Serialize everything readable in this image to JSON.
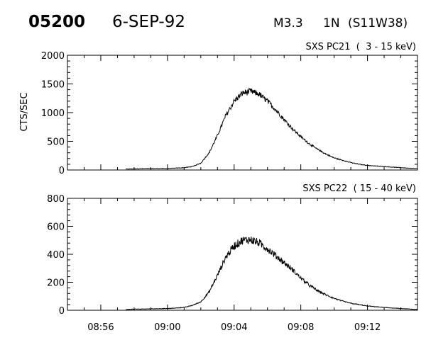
{
  "header": {
    "event_id": "05200",
    "date": "6-SEP-92",
    "flare_class": "M3.3",
    "importance": "1N",
    "location": "(S11W38)"
  },
  "chart_data": [
    {
      "type": "line",
      "title": "SXS PC21  (  3 - 15 keV)",
      "ylabel": "CTS/SEC",
      "xlabel": "",
      "xlim": [
        "08:54:00",
        "09:15:00"
      ],
      "ylim": [
        0,
        2000
      ],
      "yticks": [
        0,
        500,
        1000,
        1500,
        2000
      ],
      "xticks": [
        "08:56",
        "09:00",
        "09:04",
        "09:08",
        "09:12"
      ],
      "series": [
        {
          "x": [
            "08:57:30",
            "08:58:00",
            "08:59:00",
            "09:00:00",
            "09:01:00",
            "09:01:30",
            "09:02:00",
            "09:02:30",
            "09:03:00",
            "09:03:30",
            "09:04:00",
            "09:04:30",
            "09:05:00",
            "09:05:30",
            "09:06:00",
            "09:06:30",
            "09:07:00",
            "09:07:30",
            "09:08:00",
            "09:08:30",
            "09:09:00",
            "09:09:30",
            "09:10:00",
            "09:10:30",
            "09:11:00",
            "09:11:30",
            "09:12:00",
            "09:13:00",
            "09:14:00",
            "09:15:00"
          ],
          "y": [
            15,
            20,
            25,
            25,
            40,
            60,
            120,
            300,
            600,
            950,
            1200,
            1340,
            1370,
            1320,
            1200,
            1050,
            880,
            720,
            580,
            460,
            360,
            280,
            210,
            170,
            130,
            100,
            80,
            60,
            40,
            25
          ],
          "noise": 0.04
        }
      ]
    },
    {
      "type": "line",
      "title": "SXS PC22  ( 15 - 40 keV)",
      "ylabel": "",
      "xlabel": "",
      "xlim": [
        "08:54:00",
        "09:15:00"
      ],
      "ylim": [
        0,
        800
      ],
      "yticks": [
        0,
        200,
        400,
        600,
        800
      ],
      "xticks": [
        "08:56",
        "09:00",
        "09:04",
        "09:08",
        "09:12"
      ],
      "series": [
        {
          "x": [
            "08:57:30",
            "08:58:00",
            "08:59:00",
            "09:00:00",
            "09:01:00",
            "09:01:30",
            "09:02:00",
            "09:02:30",
            "09:03:00",
            "09:03:30",
            "09:04:00",
            "09:04:30",
            "09:05:00",
            "09:05:30",
            "09:06:00",
            "09:06:30",
            "09:07:00",
            "09:07:30",
            "09:08:00",
            "09:08:30",
            "09:09:00",
            "09:09:30",
            "09:10:00",
            "09:10:30",
            "09:11:00",
            "09:11:30",
            "09:12:00",
            "09:13:00",
            "09:14:00",
            "09:15:00"
          ],
          "y": [
            5,
            8,
            10,
            12,
            20,
            35,
            60,
            130,
            250,
            380,
            460,
            500,
            505,
            480,
            440,
            390,
            340,
            290,
            230,
            180,
            140,
            110,
            85,
            65,
            50,
            40,
            30,
            20,
            12,
            5
          ],
          "noise": 0.06
        }
      ]
    }
  ]
}
